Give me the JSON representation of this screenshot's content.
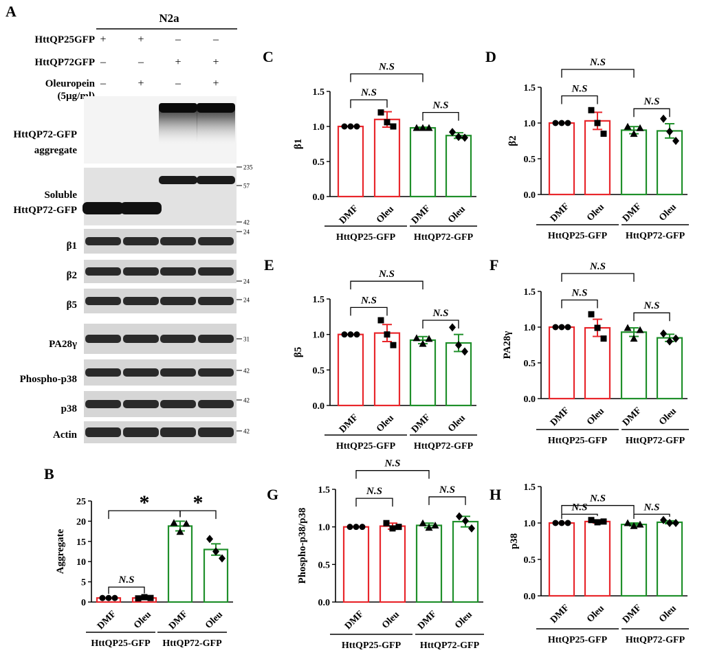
{
  "panel_labels": [
    "A",
    "B",
    "C",
    "D",
    "E",
    "F",
    "G",
    "H"
  ],
  "blot": {
    "cell_line": "N2a",
    "rows": [
      {
        "label": "HttQP25GFP",
        "signs": [
          "+",
          "+",
          "–",
          "–"
        ]
      },
      {
        "label": "HttQP72GFP",
        "signs": [
          "–",
          "–",
          "+",
          "+"
        ]
      },
      {
        "label": "Oleuropein",
        "label2": "(5µg/ml)",
        "signs": [
          "–",
          "+",
          "–",
          "+"
        ]
      }
    ],
    "bands": [
      {
        "label": "HttQP72-GFP",
        "label2": "aggregate",
        "markers": [
          "235"
        ]
      },
      {
        "label": "Soluble",
        "label2": "HttQP72-GFP",
        "markers": [
          "57",
          "42"
        ]
      },
      {
        "label": "β1",
        "markers": [
          "24"
        ]
      },
      {
        "label": "β2",
        "markers": [
          "24"
        ]
      },
      {
        "label": "β5",
        "markers": [
          "24"
        ]
      },
      {
        "label": "PA28γ",
        "markers": [
          "31"
        ]
      },
      {
        "label": "Phospho-p38",
        "markers": [
          "42"
        ]
      },
      {
        "label": "p38",
        "markers": [
          "42"
        ]
      },
      {
        "label": "Actin",
        "markers": [
          "42"
        ]
      }
    ]
  },
  "colors": {
    "group1": "#e8262b",
    "group2": "#1f8f2a",
    "axis": "#000000"
  },
  "chart_data": [
    {
      "panel": "B",
      "type": "bar",
      "ylabel": "Aggregate",
      "ylim": [
        0,
        25
      ],
      "yticks": [
        "0",
        "5",
        "10",
        "15",
        "20",
        "25"
      ],
      "categories": [
        "DMF",
        "Oleu",
        "DMF",
        "Oleu"
      ],
      "groups": [
        "HttQP25-GFP",
        "HttQP72-GFP"
      ],
      "values": [
        1.0,
        1.0,
        18.8,
        13.0
      ],
      "errors": [
        0.0,
        0.1,
        1.2,
        1.4
      ],
      "points": [
        [
          1.0,
          1.0,
          1.0
        ],
        [
          0.9,
          1.2,
          1.0
        ],
        [
          19.6,
          17.4,
          19.4
        ],
        [
          15.6,
          12.5,
          10.8
        ]
      ],
      "markers": [
        "circle",
        "square",
        "triangle",
        "diamond"
      ],
      "annotations": [
        {
          "label": "N.S",
          "from": 0,
          "to": 1,
          "y": 3.7
        },
        {
          "label": "*",
          "from": 0,
          "to": 2,
          "y": 22.6
        },
        {
          "label": "*",
          "from": 2,
          "to": 3,
          "y": 22.6
        }
      ]
    },
    {
      "panel": "C",
      "type": "bar",
      "ylabel": "β1",
      "ylim": [
        0,
        1.5
      ],
      "yticks": [
        "0.0",
        "0.5",
        "1.0",
        "1.5"
      ],
      "categories": [
        "DMF",
        "Oleu",
        "DMF",
        "Oleu"
      ],
      "groups": [
        "HttQP25-GFP",
        "HttQP72-GFP"
      ],
      "values": [
        1.0,
        1.1,
        0.98,
        0.87
      ],
      "errors": [
        0.0,
        0.11,
        0.01,
        0.04
      ],
      "points": [
        [
          1.0,
          1.0,
          1.0
        ],
        [
          1.2,
          1.06,
          1.0
        ],
        [
          0.98,
          0.98,
          0.98
        ],
        [
          0.92,
          0.85,
          0.84
        ]
      ],
      "markers": [
        "circle",
        "square",
        "triangle",
        "diamond"
      ],
      "annotations": [
        {
          "label": "N.S",
          "from": 0,
          "to": 1,
          "y": 1.38
        },
        {
          "label": "N.S",
          "from": 0,
          "to": 2,
          "y": 1.75
        },
        {
          "label": "N.S",
          "from": 2,
          "to": 3,
          "y": 1.2
        }
      ]
    },
    {
      "panel": "D",
      "type": "bar",
      "ylabel": "β2",
      "ylim": [
        0,
        1.5
      ],
      "yticks": [
        "0.0",
        "0.5",
        "1.0",
        "1.5"
      ],
      "categories": [
        "DMF",
        "Oleu",
        "DMF",
        "Oleu"
      ],
      "groups": [
        "HttQP25-GFP",
        "HttQP72-GFP"
      ],
      "values": [
        1.0,
        1.03,
        0.9,
        0.89
      ],
      "errors": [
        0.0,
        0.12,
        0.05,
        0.1
      ],
      "points": [
        [
          1.0,
          1.0,
          1.0
        ],
        [
          1.18,
          1.0,
          0.85
        ],
        [
          0.95,
          0.85,
          0.93
        ],
        [
          1.06,
          0.88,
          0.75
        ]
      ],
      "markers": [
        "circle",
        "square",
        "triangle",
        "diamond"
      ],
      "annotations": [
        {
          "label": "N.S",
          "from": 0,
          "to": 1,
          "y": 1.38
        },
        {
          "label": "N.S",
          "from": 0,
          "to": 2,
          "y": 1.75
        },
        {
          "label": "N.S",
          "from": 2,
          "to": 3,
          "y": 1.2
        }
      ]
    },
    {
      "panel": "E",
      "type": "bar",
      "ylabel": "β5",
      "ylim": [
        0,
        1.5
      ],
      "yticks": [
        "0.0",
        "0.5",
        "1.0",
        "1.5"
      ],
      "categories": [
        "DMF",
        "Oleu",
        "DMF",
        "Oleu"
      ],
      "groups": [
        "HttQP25-GFP",
        "HttQP72-GFP"
      ],
      "values": [
        1.0,
        1.02,
        0.92,
        0.88
      ],
      "errors": [
        0.0,
        0.12,
        0.05,
        0.12
      ],
      "points": [
        [
          1.0,
          1.0,
          1.0
        ],
        [
          1.2,
          1.0,
          0.85
        ],
        [
          0.95,
          0.87,
          0.94
        ],
        [
          1.1,
          0.85,
          0.76
        ]
      ],
      "markers": [
        "circle",
        "square",
        "triangle",
        "diamond"
      ],
      "annotations": [
        {
          "label": "N.S",
          "from": 0,
          "to": 1,
          "y": 1.38
        },
        {
          "label": "N.S",
          "from": 0,
          "to": 2,
          "y": 1.75
        },
        {
          "label": "N.S",
          "from": 2,
          "to": 3,
          "y": 1.2
        }
      ]
    },
    {
      "panel": "F",
      "type": "bar",
      "ylabel": "PA28γ",
      "ylim": [
        0,
        1.5
      ],
      "yticks": [
        "0.0",
        "0.5",
        "1.0",
        "1.5"
      ],
      "categories": [
        "DMF",
        "Oleu",
        "DMF",
        "Oleu"
      ],
      "groups": [
        "HttQP25-GFP",
        "HttQP72-GFP"
      ],
      "values": [
        1.0,
        0.99,
        0.93,
        0.85
      ],
      "errors": [
        0.0,
        0.12,
        0.06,
        0.05
      ],
      "points": [
        [
          1.0,
          1.0,
          1.0
        ],
        [
          1.18,
          0.99,
          0.84
        ],
        [
          0.99,
          0.84,
          0.96
        ],
        [
          0.91,
          0.8,
          0.84
        ]
      ],
      "markers": [
        "circle",
        "square",
        "triangle",
        "diamond"
      ],
      "annotations": [
        {
          "label": "N.S",
          "from": 0,
          "to": 1,
          "y": 1.38
        },
        {
          "label": "N.S",
          "from": 0,
          "to": 2,
          "y": 1.75
        },
        {
          "label": "N.S",
          "from": 2,
          "to": 3,
          "y": 1.2
        }
      ]
    },
    {
      "panel": "G",
      "type": "bar",
      "ylabel": "Phospho-p38/p38",
      "ylim": [
        0,
        1.5
      ],
      "yticks": [
        "0.0",
        "0.5",
        "1.0",
        "1.5"
      ],
      "categories": [
        "DMF",
        "Oleu",
        "DMF",
        "Oleu"
      ],
      "groups": [
        "HttQP25-GFP",
        "HttQP72-GFP"
      ],
      "values": [
        1.0,
        1.01,
        1.02,
        1.07
      ],
      "errors": [
        0.0,
        0.04,
        0.03,
        0.07
      ],
      "points": [
        [
          1.0,
          1.0,
          1.0
        ],
        [
          1.05,
          0.98,
          1.0
        ],
        [
          1.05,
          0.99,
          1.02
        ],
        [
          1.14,
          1.08,
          0.98
        ]
      ],
      "markers": [
        "circle",
        "square",
        "triangle",
        "diamond"
      ],
      "annotations": [
        {
          "label": "N.S",
          "from": 0,
          "to": 1,
          "y": 1.38
        },
        {
          "label": "N.S",
          "from": 0,
          "to": 2,
          "y": 1.75
        },
        {
          "label": "N.S",
          "from": 2,
          "to": 3,
          "y": 1.4
        }
      ]
    },
    {
      "panel": "H",
      "type": "bar",
      "ylabel": "p38",
      "ylim": [
        0,
        1.5
      ],
      "yticks": [
        "0.0",
        "0.5",
        "1.0",
        "1.5"
      ],
      "categories": [
        "DMF",
        "Oleu",
        "DMF",
        "Oleu"
      ],
      "groups": [
        "HttQP25-GFP",
        "HttQP72-GFP"
      ],
      "values": [
        1.0,
        1.02,
        0.98,
        1.01
      ],
      "errors": [
        0.0,
        0.02,
        0.02,
        0.02
      ],
      "points": [
        [
          1.0,
          1.0,
          1.0
        ],
        [
          1.04,
          1.01,
          1.02
        ],
        [
          1.0,
          0.96,
          0.98
        ],
        [
          1.04,
          1.0,
          1.0
        ]
      ],
      "markers": [
        "circle",
        "square",
        "triangle",
        "diamond"
      ],
      "annotations": [
        {
          "label": "N.S",
          "from": 0,
          "to": 1,
          "y": 1.12
        },
        {
          "label": "N.S",
          "from": 0,
          "to": 2,
          "y": 1.24
        },
        {
          "label": "N.S",
          "from": 2,
          "to": 3,
          "y": 1.12
        }
      ]
    }
  ]
}
